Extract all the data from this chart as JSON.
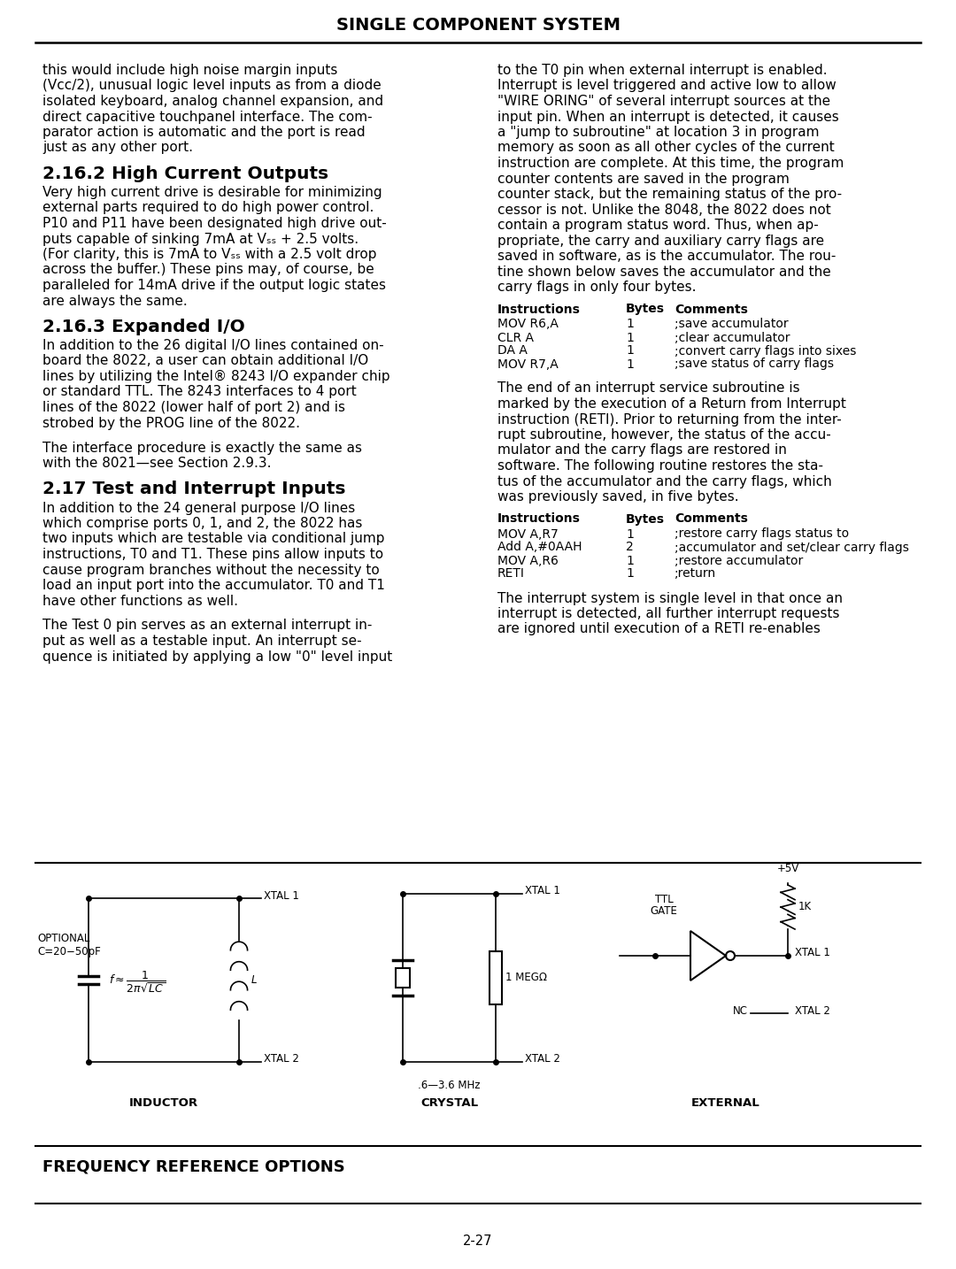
{
  "title": "SINGLE COMPONENT SYSTEM",
  "page_number": "2-27",
  "bg_color": "#ffffff",
  "text_color": "#000000",
  "left_column": {
    "section_2162_title": "2.16.2 High Current Outputs",
    "section_2163_title": "2.16.3 Expanded I/O",
    "section_217_title": "2.17 Test and Interrupt Inputs"
  },
  "right_column": {
    "table1_header": [
      "Instructions",
      "Bytes",
      "Comments"
    ],
    "table1_rows": [
      [
        "MOV R6,A",
        "1",
        ";save accumulator"
      ],
      [
        "CLR A",
        "1",
        ";clear accumulator"
      ],
      [
        "DA A",
        "1",
        ";convert carry flags into sixes"
      ],
      [
        "MOV R7,A",
        "1",
        ";save status of carry flags"
      ]
    ],
    "table2_header": [
      "Instructions",
      "Bytes",
      "Comments"
    ],
    "table2_rows": [
      [
        "MOV A,R7",
        "1",
        ";restore carry flags status to"
      ],
      [
        "Add A,#0AAH",
        "2",
        ";accumulator and set/clear carry flags"
      ],
      [
        "MOV A,R6",
        "1",
        ";restore accumulator"
      ],
      [
        "RETI",
        "1",
        ";return"
      ]
    ]
  },
  "bottom_label": "FREQUENCY REFERENCE OPTIONS",
  "diagrams": {
    "inductor_label": "INDUCTOR",
    "crystal_label": "CRYSTAL",
    "external_label": "EXTERNAL"
  }
}
